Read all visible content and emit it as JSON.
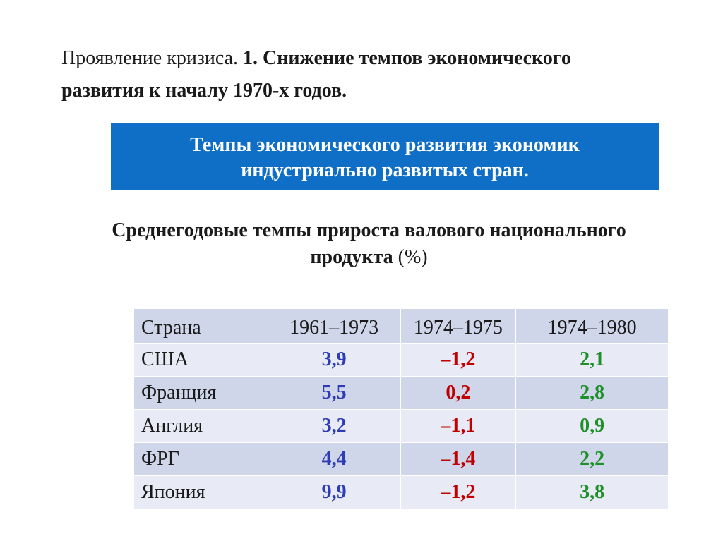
{
  "heading": {
    "prefix": "Проявление кризиса. ",
    "bold_line1": "1. Снижение темпов экономического",
    "bold_line2": "развития к началу 1970-х годов."
  },
  "banner": {
    "line1": "Темпы экономического развития экономик",
    "line2": "индустриально развитых стран."
  },
  "subtitle": {
    "line1": "Среднегодовые темпы прироста валового национального",
    "line2": "продукта",
    "unit": "(%)"
  },
  "table": {
    "headers": [
      "Страна",
      "1961–1973",
      "1974–1975",
      "1974–1980"
    ],
    "rows": [
      {
        "country": "США",
        "v1": "3,9",
        "v2": "–1,2",
        "v3": "2,1"
      },
      {
        "country": "Франция",
        "v1": "5,5",
        "v2": "0,2",
        "v3": "2,8"
      },
      {
        "country": "Англия",
        "v1": "3,2",
        "v2": "–1,1",
        "v3": "0,9"
      },
      {
        "country": "ФРГ",
        "v1": "4,4",
        "v2": "–1,4",
        "v3": "2,2"
      },
      {
        "country": "Япония",
        "v1": "9,9",
        "v2": "–1,2",
        "v3": "3,8"
      }
    ]
  },
  "colors": {
    "banner_bg": "#0f6fc6",
    "col1_value": "#2e3db6",
    "col2_value": "#c00000",
    "col3_value": "#1f8f2a"
  }
}
